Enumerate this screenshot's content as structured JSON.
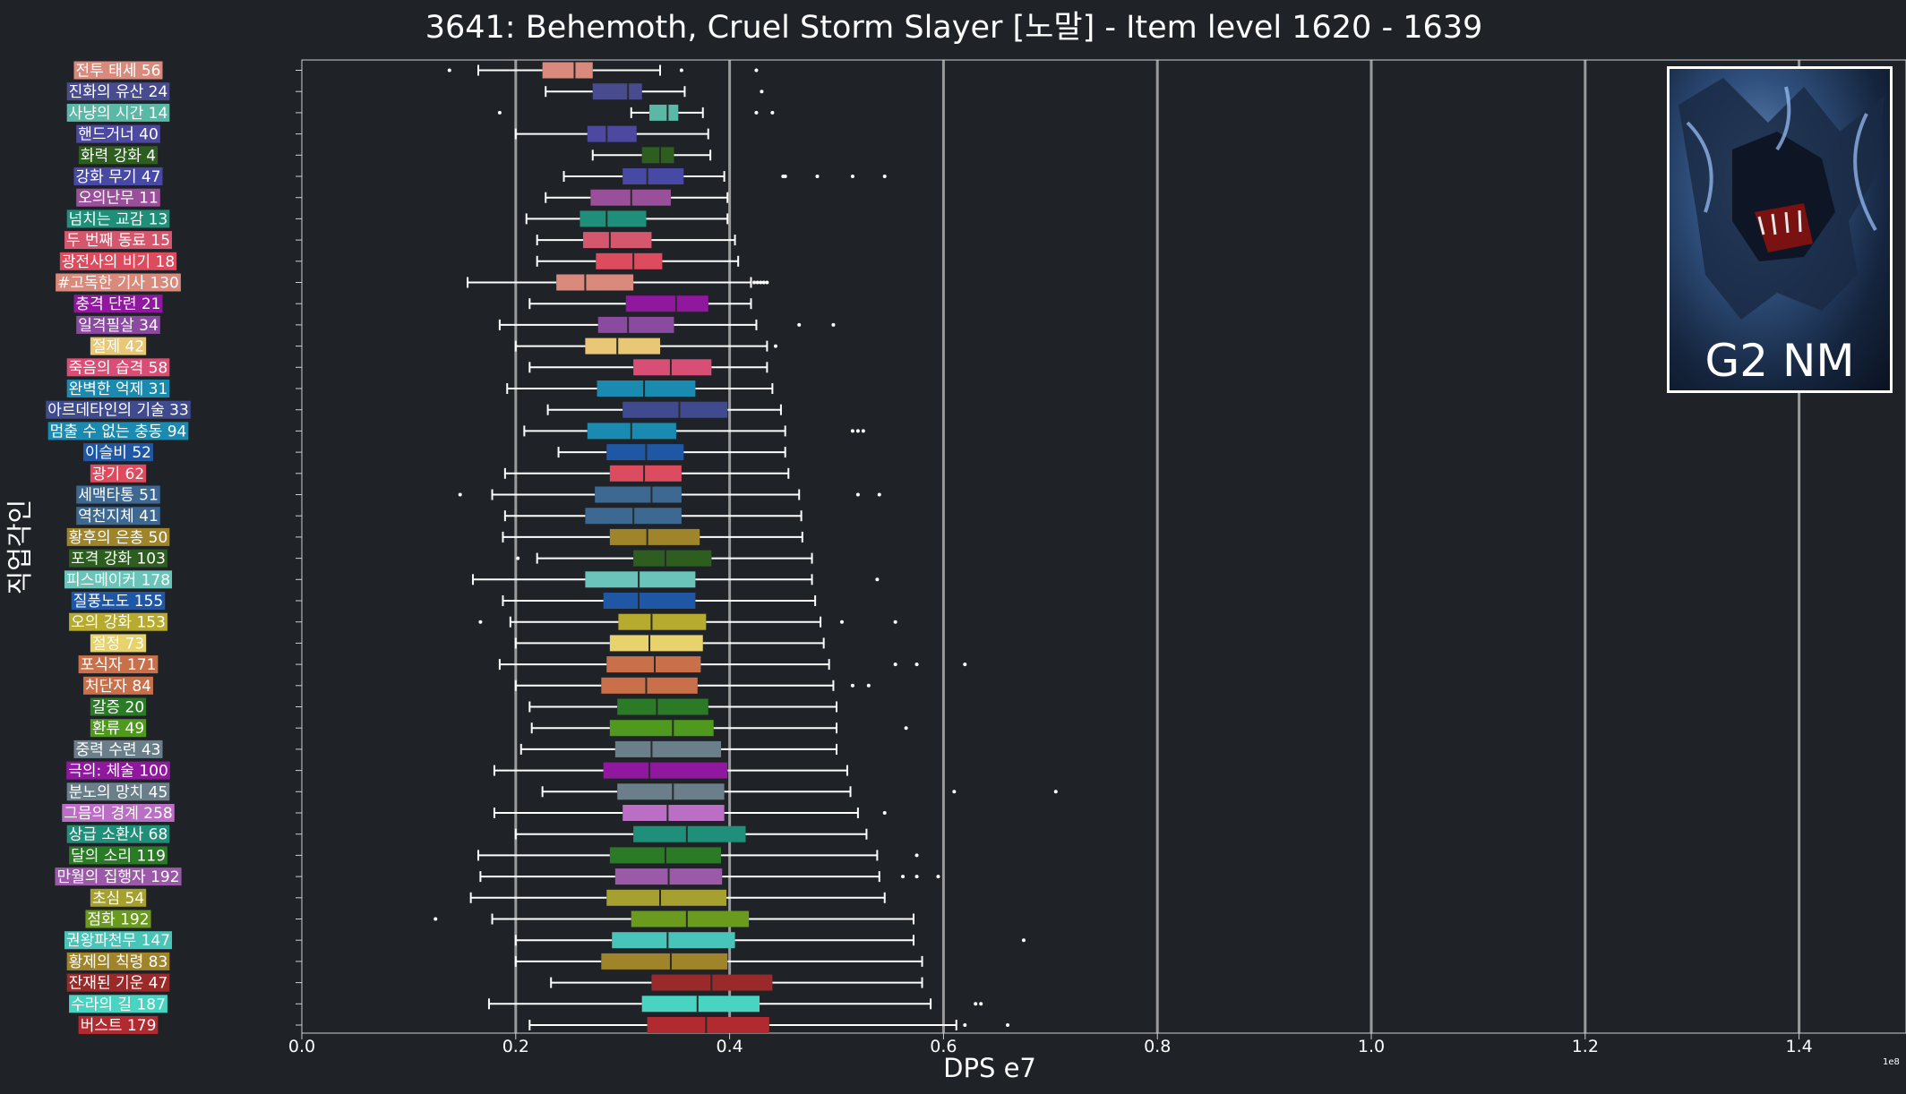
{
  "chart_data": {
    "type": "box",
    "title": "3641: Behemoth, Cruel Storm Slayer [노말] - Item level 1620 - 1639",
    "xlabel": "DPS e7",
    "ylabel": "직업각인",
    "x_offset_label": "1e8",
    "xlim": [
      0.0,
      1.5
    ],
    "xticks": [
      "0.0",
      "0.2",
      "0.4",
      "0.6",
      "0.8",
      "1.0",
      "1.2",
      "1.4"
    ],
    "grid": "vertical",
    "categories": [
      {
        "label": "전투 태세 56",
        "color": "#d98a7d",
        "stats": [
          0.165,
          0.225,
          0.255,
          0.272,
          0.335
        ],
        "outliers": [
          0.138,
          0.355,
          0.425
        ]
      },
      {
        "label": "진화의 유산 24",
        "color": "#484b8d",
        "stats": [
          0.228,
          0.272,
          0.305,
          0.318,
          0.358
        ],
        "outliers": [
          0.43
        ]
      },
      {
        "label": "사냥의 시간 14",
        "color": "#5bb8a6",
        "stats": [
          0.308,
          0.325,
          0.342,
          0.352,
          0.375
        ],
        "outliers": [
          0.185,
          0.425,
          0.44
        ]
      },
      {
        "label": "핸드거너 40",
        "color": "#4d48a0",
        "stats": [
          0.2,
          0.267,
          0.285,
          0.313,
          0.38
        ],
        "outliers": []
      },
      {
        "label": "화력 강화 4",
        "color": "#2d5e1f",
        "stats": [
          0.272,
          0.318,
          0.335,
          0.348,
          0.382
        ],
        "outliers": []
      },
      {
        "label": "강화 무기 47",
        "color": "#4848a5",
        "stats": [
          0.245,
          0.3,
          0.323,
          0.357,
          0.395
        ],
        "outliers": [
          0.45,
          0.452,
          0.482,
          0.515,
          0.545
        ]
      },
      {
        "label": "오의난무 11",
        "color": "#9a4f9a",
        "stats": [
          0.228,
          0.27,
          0.308,
          0.345,
          0.398
        ],
        "outliers": []
      },
      {
        "label": "넘치는 교감 13",
        "color": "#1f8f7a",
        "stats": [
          0.21,
          0.26,
          0.285,
          0.322,
          0.398
        ],
        "outliers": []
      },
      {
        "label": "두 번째 동료 15",
        "color": "#d4576e",
        "stats": [
          0.22,
          0.263,
          0.288,
          0.327,
          0.405
        ],
        "outliers": []
      },
      {
        "label": "광전사의 비기 18",
        "color": "#dd4b5e",
        "stats": [
          0.22,
          0.275,
          0.31,
          0.337,
          0.408
        ],
        "outliers": []
      },
      {
        "label": "#고독한 기사 130",
        "color": "#d98a7d",
        "stats": [
          0.155,
          0.238,
          0.265,
          0.31,
          0.42
        ],
        "outliers": [
          0.423,
          0.426,
          0.429,
          0.432,
          0.435
        ]
      },
      {
        "label": "충격 단련 21",
        "color": "#8f189f",
        "stats": [
          0.213,
          0.303,
          0.35,
          0.38,
          0.42
        ],
        "outliers": []
      },
      {
        "label": "일격필살 34",
        "color": "#8a4a9f",
        "stats": [
          0.185,
          0.277,
          0.305,
          0.348,
          0.425
        ],
        "outliers": [
          0.465,
          0.497
        ]
      },
      {
        "label": "절제 42",
        "color": "#e8c877",
        "stats": [
          0.2,
          0.265,
          0.295,
          0.335,
          0.435
        ],
        "outliers": [
          0.443
        ]
      },
      {
        "label": "죽음의 습격 58",
        "color": "#d94e74",
        "stats": [
          0.213,
          0.31,
          0.345,
          0.383,
          0.435
        ],
        "outliers": []
      },
      {
        "label": "완벽한 억제 31",
        "color": "#1a8ab0",
        "stats": [
          0.192,
          0.276,
          0.32,
          0.368,
          0.44
        ],
        "outliers": []
      },
      {
        "label": "아르데타인의 기술 33",
        "color": "#3f4a8f",
        "stats": [
          0.23,
          0.3,
          0.353,
          0.398,
          0.448
        ],
        "outliers": []
      },
      {
        "label": "멈출 수 없는 충동 94",
        "color": "#1a8ab0",
        "stats": [
          0.208,
          0.267,
          0.308,
          0.35,
          0.452
        ],
        "outliers": [
          0.515,
          0.52,
          0.525
        ]
      },
      {
        "label": "이슬비 52",
        "color": "#1f57a4",
        "stats": [
          0.24,
          0.285,
          0.322,
          0.357,
          0.452
        ],
        "outliers": []
      },
      {
        "label": "광기 62",
        "color": "#dd4b5e",
        "stats": [
          0.19,
          0.288,
          0.32,
          0.355,
          0.455
        ],
        "outliers": []
      },
      {
        "label": "세맥타통 51",
        "color": "#3c6892",
        "stats": [
          0.178,
          0.274,
          0.327,
          0.355,
          0.465
        ],
        "outliers": [
          0.148,
          0.52,
          0.54
        ]
      },
      {
        "label": "역천지체 41",
        "color": "#3c6892",
        "stats": [
          0.19,
          0.265,
          0.31,
          0.355,
          0.467
        ],
        "outliers": []
      },
      {
        "label": "황후의 은총 50",
        "color": "#a0842a",
        "stats": [
          0.188,
          0.288,
          0.323,
          0.372,
          0.468
        ],
        "outliers": []
      },
      {
        "label": "포격 강화 103",
        "color": "#2d5e1f",
        "stats": [
          0.22,
          0.31,
          0.34,
          0.383,
          0.477
        ],
        "outliers": [
          0.202
        ]
      },
      {
        "label": "피스메이커 178",
        "color": "#6bc4ba",
        "stats": [
          0.16,
          0.265,
          0.315,
          0.368,
          0.477
        ],
        "outliers": [
          0.538
        ]
      },
      {
        "label": "질풍노도 155",
        "color": "#1f57a4",
        "stats": [
          0.188,
          0.282,
          0.315,
          0.368,
          0.48
        ],
        "outliers": []
      },
      {
        "label": "오의 강화 153",
        "color": "#b6aa2f",
        "stats": [
          0.195,
          0.296,
          0.327,
          0.378,
          0.485
        ],
        "outliers": [
          0.167,
          0.505,
          0.555
        ]
      },
      {
        "label": "절정 73",
        "color": "#e8d26b",
        "stats": [
          0.2,
          0.288,
          0.325,
          0.375,
          0.488
        ],
        "outliers": []
      },
      {
        "label": "포식자 171",
        "color": "#c9704a",
        "stats": [
          0.185,
          0.285,
          0.33,
          0.373,
          0.493
        ],
        "outliers": [
          0.555,
          0.575,
          0.62
        ]
      },
      {
        "label": "처단자 84",
        "color": "#c9704a",
        "stats": [
          0.2,
          0.28,
          0.322,
          0.37,
          0.497
        ],
        "outliers": [
          0.515,
          0.53
        ]
      },
      {
        "label": "갈증 20",
        "color": "#2a7a26",
        "stats": [
          0.213,
          0.295,
          0.332,
          0.38,
          0.5
        ],
        "outliers": []
      },
      {
        "label": "환류 49",
        "color": "#4f9a1e",
        "stats": [
          0.215,
          0.288,
          0.347,
          0.385,
          0.5
        ],
        "outliers": [
          0.565
        ]
      },
      {
        "label": "중력 수련 43",
        "color": "#6b7f8a",
        "stats": [
          0.205,
          0.293,
          0.327,
          0.392,
          0.5
        ],
        "outliers": []
      },
      {
        "label": "극의: 체술 100",
        "color": "#8f189f",
        "stats": [
          0.18,
          0.282,
          0.325,
          0.398,
          0.51
        ],
        "outliers": []
      },
      {
        "label": "분노의 망치 45",
        "color": "#6b7f8a",
        "stats": [
          0.225,
          0.295,
          0.347,
          0.395,
          0.513
        ],
        "outliers": [
          0.61,
          0.705
        ]
      },
      {
        "label": "그믐의 경계 258",
        "color": "#bb6fc4",
        "stats": [
          0.18,
          0.3,
          0.342,
          0.395,
          0.52
        ],
        "outliers": [
          0.545
        ]
      },
      {
        "label": "상급 소환사 68",
        "color": "#1f8f7a",
        "stats": [
          0.2,
          0.31,
          0.36,
          0.415,
          0.528
        ],
        "outliers": []
      },
      {
        "label": "달의 소리 119",
        "color": "#2a7a26",
        "stats": [
          0.165,
          0.288,
          0.34,
          0.392,
          0.538
        ],
        "outliers": [
          0.575
        ]
      },
      {
        "label": "만월의 집행자 192",
        "color": "#9a5aa8",
        "stats": [
          0.167,
          0.293,
          0.343,
          0.393,
          0.54
        ],
        "outliers": [
          0.562,
          0.575,
          0.595
        ]
      },
      {
        "label": "초심 54",
        "color": "#a5a030",
        "stats": [
          0.158,
          0.285,
          0.335,
          0.397,
          0.545
        ],
        "outliers": []
      },
      {
        "label": "점화 192",
        "color": "#6a9a1e",
        "stats": [
          0.178,
          0.308,
          0.36,
          0.418,
          0.572
        ],
        "outliers": [
          0.125
        ]
      },
      {
        "label": "권왕파천무 147",
        "color": "#48c4b8",
        "stats": [
          0.2,
          0.29,
          0.342,
          0.405,
          0.572
        ],
        "outliers": [
          0.675
        ]
      },
      {
        "label": "황제의 칙령 83",
        "color": "#a0842a",
        "stats": [
          0.2,
          0.28,
          0.345,
          0.398,
          0.58
        ],
        "outliers": []
      },
      {
        "label": "잔재된 기운 47",
        "color": "#9a2a2a",
        "stats": [
          0.233,
          0.327,
          0.383,
          0.44,
          0.58
        ],
        "outliers": []
      },
      {
        "label": "수라의 길 187",
        "color": "#48d4c0",
        "stats": [
          0.175,
          0.318,
          0.37,
          0.428,
          0.588
        ],
        "outliers": [
          0.63,
          0.635
        ]
      },
      {
        "label": "버스트 179",
        "color": "#b02a30",
        "stats": [
          0.213,
          0.323,
          0.378,
          0.437,
          0.612
        ],
        "outliers": [
          0.62,
          0.66
        ]
      }
    ]
  },
  "boss_card": {
    "caption": "G2 NM"
  }
}
